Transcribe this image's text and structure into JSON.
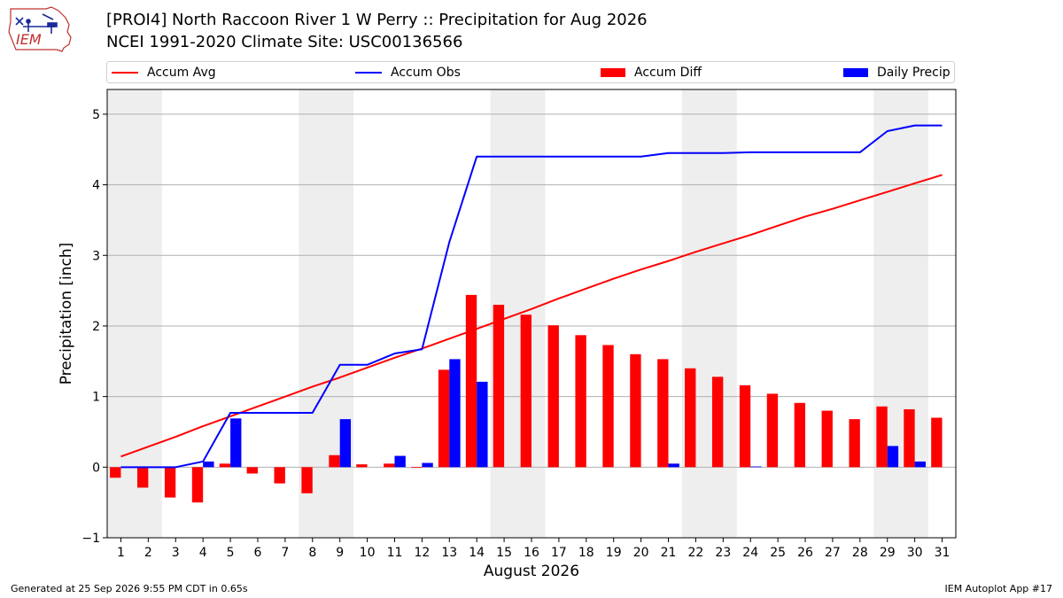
{
  "logo_text": "IEM",
  "title_line1": "[PROI4] North Raccoon River 1 W Perry :: Precipitation for Aug 2026",
  "title_line2": "NCEI 1991-2020 Climate Site: USC00136566",
  "footer_left": "Generated at 25 Sep 2026 9:55 PM CDT in 0.65s",
  "footer_right": "IEM Autoplot App #17",
  "colors": {
    "accum_avg": "#ff0000",
    "accum_obs": "#0000ff",
    "accum_diff": "#ff0000",
    "daily_precip": "#0000ff",
    "weekend_band": "#eeeeee",
    "grid": "#b0b0b0"
  },
  "chart_data": {
    "type": "bar",
    "xlabel": "August 2026",
    "ylabel": "Precipitation [inch]",
    "ylim": [
      -1,
      5.35
    ],
    "yticks": [
      -1,
      0,
      1,
      2,
      3,
      4,
      5
    ],
    "ytick_labels": [
      "−1",
      "0",
      "1",
      "2",
      "3",
      "4",
      "5"
    ],
    "grid": "horizontal",
    "legend_placement": "top",
    "days": [
      1,
      2,
      3,
      4,
      5,
      6,
      7,
      8,
      9,
      10,
      11,
      12,
      13,
      14,
      15,
      16,
      17,
      18,
      19,
      20,
      21,
      22,
      23,
      24,
      25,
      26,
      27,
      28,
      29,
      30,
      31
    ],
    "weekend_bands": [
      [
        1,
        2
      ],
      [
        8,
        9
      ],
      [
        15,
        16
      ],
      [
        22,
        23
      ],
      [
        29,
        30
      ]
    ],
    "series": [
      {
        "name": "Accum Avg",
        "kind": "line",
        "values": [
          0.15,
          0.29,
          0.43,
          0.58,
          0.72,
          0.86,
          1.0,
          1.14,
          1.27,
          1.41,
          1.55,
          1.68,
          1.82,
          1.96,
          2.1,
          2.24,
          2.39,
          2.53,
          2.67,
          2.8,
          2.92,
          3.05,
          3.17,
          3.29,
          3.42,
          3.55,
          3.66,
          3.78,
          3.9,
          4.02,
          4.14
        ]
      },
      {
        "name": "Accum Obs",
        "kind": "line",
        "values": [
          0.0,
          0.0,
          0.0,
          0.08,
          0.77,
          0.77,
          0.77,
          0.77,
          1.45,
          1.45,
          1.61,
          1.67,
          3.19,
          4.4,
          4.4,
          4.4,
          4.4,
          4.4,
          4.4,
          4.4,
          4.45,
          4.45,
          4.45,
          4.46,
          4.46,
          4.46,
          4.46,
          4.46,
          4.76,
          4.84,
          4.84
        ]
      },
      {
        "name": "Accum Diff",
        "kind": "bar",
        "values": [
          -0.15,
          -0.29,
          -0.43,
          -0.5,
          0.05,
          -0.09,
          -0.23,
          -0.37,
          0.17,
          0.04,
          0.05,
          -0.01,
          1.38,
          2.44,
          2.3,
          2.16,
          2.01,
          1.87,
          1.73,
          1.6,
          1.53,
          1.4,
          1.28,
          1.16,
          1.04,
          0.91,
          0.8,
          0.68,
          0.86,
          0.82,
          0.7
        ]
      },
      {
        "name": "Daily Precip",
        "kind": "bar",
        "values": [
          0,
          0,
          0,
          0.08,
          0.69,
          0,
          0,
          0,
          0.68,
          0,
          0.16,
          0.06,
          1.53,
          1.21,
          0,
          0,
          0,
          0,
          0,
          0,
          0.05,
          0,
          0,
          0.01,
          0,
          0,
          0,
          0,
          0.3,
          0.08,
          0
        ]
      }
    ]
  }
}
